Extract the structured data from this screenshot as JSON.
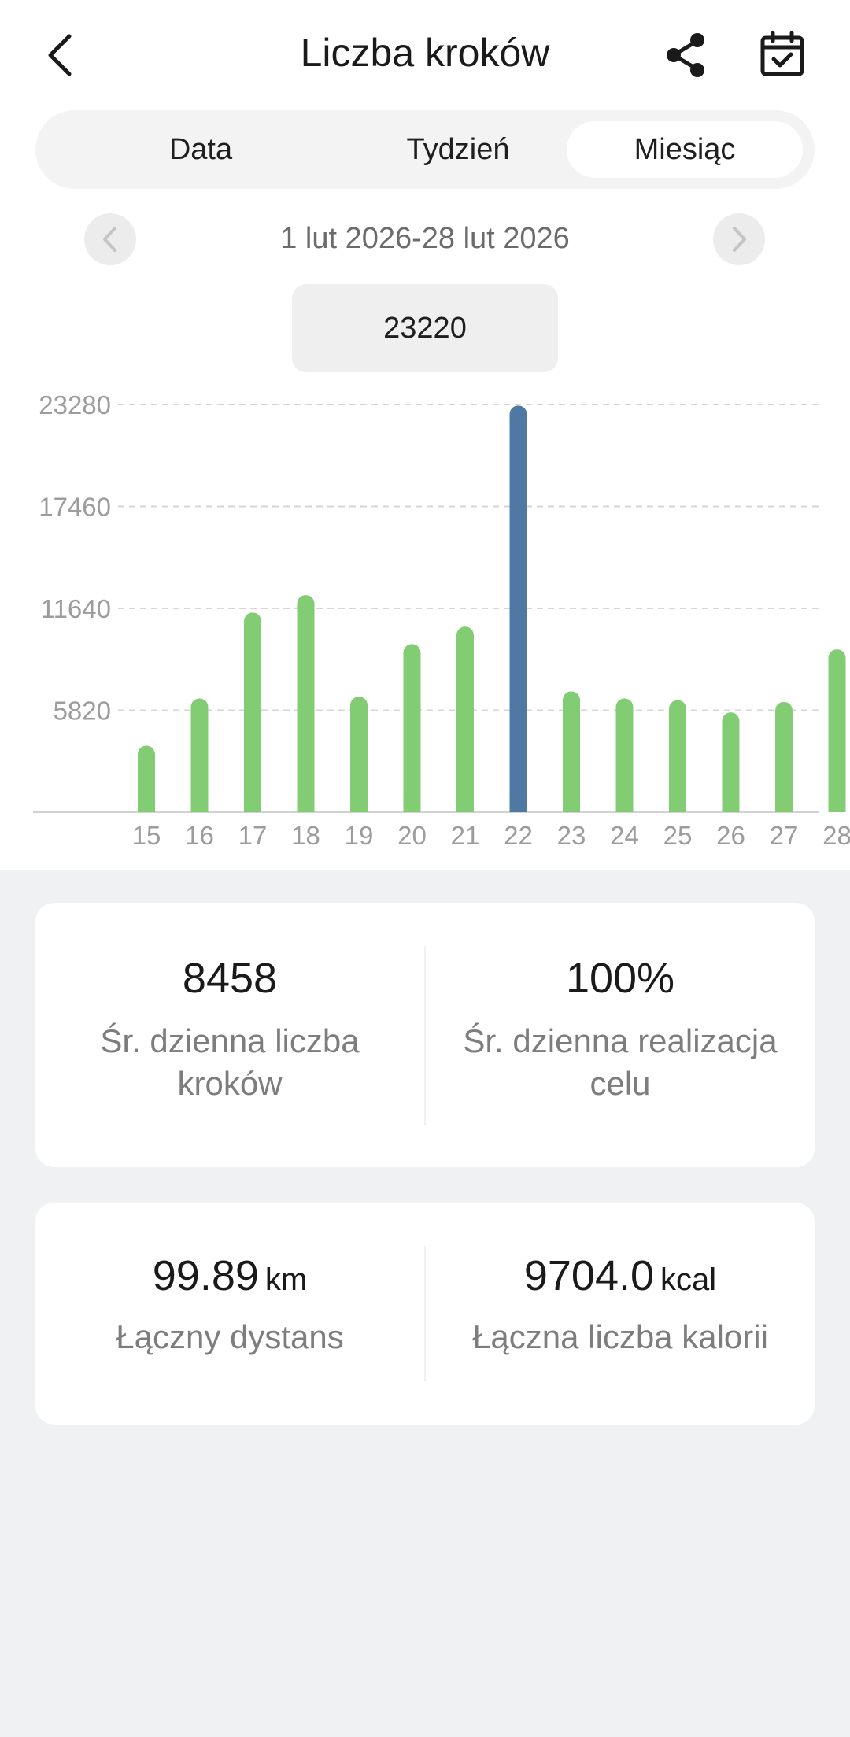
{
  "header": {
    "title": "Liczba kroków",
    "back_icon": "chevron-left-icon",
    "share_icon": "share-icon",
    "calendar_icon": "calendar-check-icon"
  },
  "tabs": [
    {
      "label": "Data",
      "active": false
    },
    {
      "label": "Tydzień",
      "active": false
    },
    {
      "label": "Miesiąc",
      "active": true
    }
  ],
  "range": {
    "text": "1 lut 2026-28 lut 2026",
    "prev_icon": "chevron-left-icon",
    "next_icon": "chevron-right-icon"
  },
  "tooltip": {
    "value": "23220"
  },
  "colors": {
    "bar": "#82cc74",
    "bar_selected": "#4f78a3",
    "grid": "#d6d6d6",
    "axis_label": "#9c9c9c"
  },
  "chart_data": {
    "type": "bar",
    "categories": [
      "15",
      "16",
      "17",
      "18",
      "19",
      "20",
      "21",
      "22",
      "23",
      "24",
      "25",
      "26",
      "27",
      "28"
    ],
    "values": [
      3800,
      6500,
      11400,
      12400,
      6600,
      9600,
      10600,
      23220,
      6900,
      6500,
      6400,
      5700,
      6300,
      9300
    ],
    "selected_index": 7,
    "yticks": [
      5820,
      11640,
      17460,
      23280
    ],
    "ylim": [
      0,
      23280
    ],
    "grid": true,
    "gridlines_dashed": true
  },
  "stats": {
    "avg_steps": {
      "value": "8458",
      "label": "Śr. dzienna liczba kroków"
    },
    "avg_goal": {
      "value": "100%",
      "label": "Śr. dzienna realizacja celu"
    },
    "distance": {
      "value": "99.89",
      "unit": "km",
      "label": "Łączny dystans"
    },
    "calories": {
      "value": "9704.0",
      "unit": "kcal",
      "label": "Łączna liczba kalorii"
    }
  }
}
